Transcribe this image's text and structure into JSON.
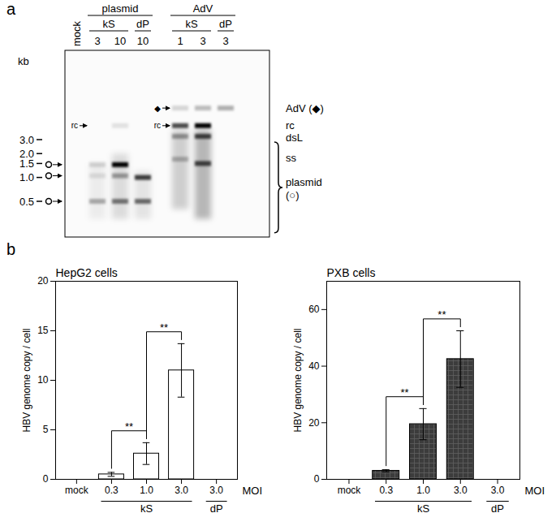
{
  "figure": {
    "panel_labels": [
      "a",
      "b"
    ]
  },
  "blot": {
    "lanes": [
      "mock",
      "3",
      "10",
      "10",
      "1",
      "3",
      "3"
    ],
    "lane_groups": [
      {
        "name": "plasmid",
        "from": 1,
        "to": 3
      },
      {
        "name": "AdV",
        "from": 4,
        "to": 6
      }
    ],
    "lane_subgroups": [
      {
        "name": "kS",
        "from": 1,
        "to": 2
      },
      {
        "name": "dP",
        "from": 3,
        "to": 3
      },
      {
        "name": "kS",
        "from": 4,
        "to": 5
      },
      {
        "name": "dP",
        "from": 6,
        "to": 6
      }
    ],
    "marker_unit": "kb",
    "markers": [
      {
        "value": 3,
        "label": "3.0"
      },
      {
        "value": 2,
        "label": "2.0"
      },
      {
        "value": 1.5,
        "label": "1.5"
      },
      {
        "value": 1,
        "label": "1.0"
      },
      {
        "value": 0.5,
        "label": "0.5"
      }
    ],
    "circle_marks_kb": [
      1.45,
      1.05,
      0.5
    ],
    "inlane_labels": [
      {
        "label": "rc",
        "lane": 1,
        "kb": 4.5
      },
      {
        "label": "rc",
        "lane": 4,
        "kb": 4.5
      },
      {
        "label": "◆",
        "lane": 4,
        "kb": 7.5
      }
    ],
    "right_labels": [
      {
        "label": "AdV (◆)",
        "kb": 7.5
      },
      {
        "label": "rc",
        "kb": 4.5
      },
      {
        "label": "dsL",
        "kb": 3.2
      },
      {
        "label": "ss",
        "kb": 1.75
      }
    ],
    "brace": {
      "label": "plasmid (○)",
      "kb": [
        2.8,
        0.2
      ]
    },
    "bands": [
      {
        "lane": 1,
        "kb": 1.45,
        "intensity": 0.15
      },
      {
        "lane": 1,
        "kb": 1.05,
        "intensity": 0.1
      },
      {
        "lane": 1,
        "kb": 0.5,
        "intensity": 0.3
      },
      {
        "lane": 2,
        "kb": 4.5,
        "intensity": 0.1
      },
      {
        "lane": 2,
        "kb": 1.45,
        "intensity": 1.0
      },
      {
        "lane": 2,
        "kb": 1.05,
        "intensity": 0.35
      },
      {
        "lane": 2,
        "kb": 0.5,
        "intensity": 0.5
      },
      {
        "lane": 3,
        "kb": 1.0,
        "intensity": 0.75
      },
      {
        "lane": 3,
        "kb": 0.5,
        "intensity": 0.55
      },
      {
        "lane": 4,
        "kb": 7.5,
        "intensity": 0.15
      },
      {
        "lane": 4,
        "kb": 4.5,
        "intensity": 0.7
      },
      {
        "lane": 4,
        "kb": 3.3,
        "intensity": 0.35
      },
      {
        "lane": 4,
        "kb": 1.7,
        "intensity": 0.25
      },
      {
        "lane": 5,
        "kb": 7.5,
        "intensity": 0.25
      },
      {
        "lane": 5,
        "kb": 4.5,
        "intensity": 1.0
      },
      {
        "lane": 5,
        "kb": 3.3,
        "intensity": 0.7
      },
      {
        "lane": 5,
        "kb": 1.5,
        "intensity": 0.7
      },
      {
        "lane": 6,
        "kb": 7.5,
        "intensity": 0.3
      }
    ],
    "smears": [
      {
        "lane": 1,
        "kb": [
          1.5,
          0.3
        ],
        "intensity": 0.1
      },
      {
        "lane": 2,
        "kb": [
          2.0,
          0.3
        ],
        "intensity": 0.2
      },
      {
        "lane": 3,
        "kb": [
          1.2,
          0.3
        ],
        "intensity": 0.15
      },
      {
        "lane": 4,
        "kb": [
          4.0,
          0.4
        ],
        "intensity": 0.3
      },
      {
        "lane": 5,
        "kb": [
          4.0,
          0.3
        ],
        "intensity": 0.45
      }
    ]
  },
  "chart_data": [
    {
      "type": "bar",
      "title": "HepG2 cells",
      "categories": [
        "mock",
        "0.3",
        "1.0",
        "3.0",
        "3.0"
      ],
      "groups": [
        null,
        "kS",
        "kS",
        "kS",
        "dP"
      ],
      "values": [
        0,
        0.5,
        2.6,
        11.0,
        0
      ],
      "errors": [
        null,
        0.2,
        1.1,
        2.7,
        null
      ],
      "color": "#ffffff",
      "ylabel": "HBV genome copy / cell",
      "xlabel": "MOI",
      "ylim": [
        0,
        20
      ],
      "yticks": [
        0,
        5,
        10,
        15,
        20
      ],
      "significance": [
        {
          "pair": [
            1,
            2
          ],
          "label": "**"
        },
        {
          "pair": [
            2,
            3
          ],
          "label": "**"
        }
      ]
    },
    {
      "type": "bar",
      "title": "PXB cells",
      "categories": [
        "mock",
        "0.3",
        "1.0",
        "3.0",
        "3.0"
      ],
      "groups": [
        null,
        "kS",
        "kS",
        "kS",
        "dP"
      ],
      "values": [
        0,
        3.0,
        19.5,
        42.5,
        0
      ],
      "errors": [
        null,
        0.4,
        5.5,
        10.0,
        null
      ],
      "color": "#3c3c3c",
      "ylabel": "HBV genome copy / cell",
      "xlabel": "MOI",
      "ylim": [
        0,
        70
      ],
      "yticks": [
        0,
        20,
        40,
        60
      ],
      "significance": [
        {
          "pair": [
            1,
            2
          ],
          "label": "**"
        },
        {
          "pair": [
            2,
            3
          ],
          "label": "**"
        }
      ]
    }
  ]
}
